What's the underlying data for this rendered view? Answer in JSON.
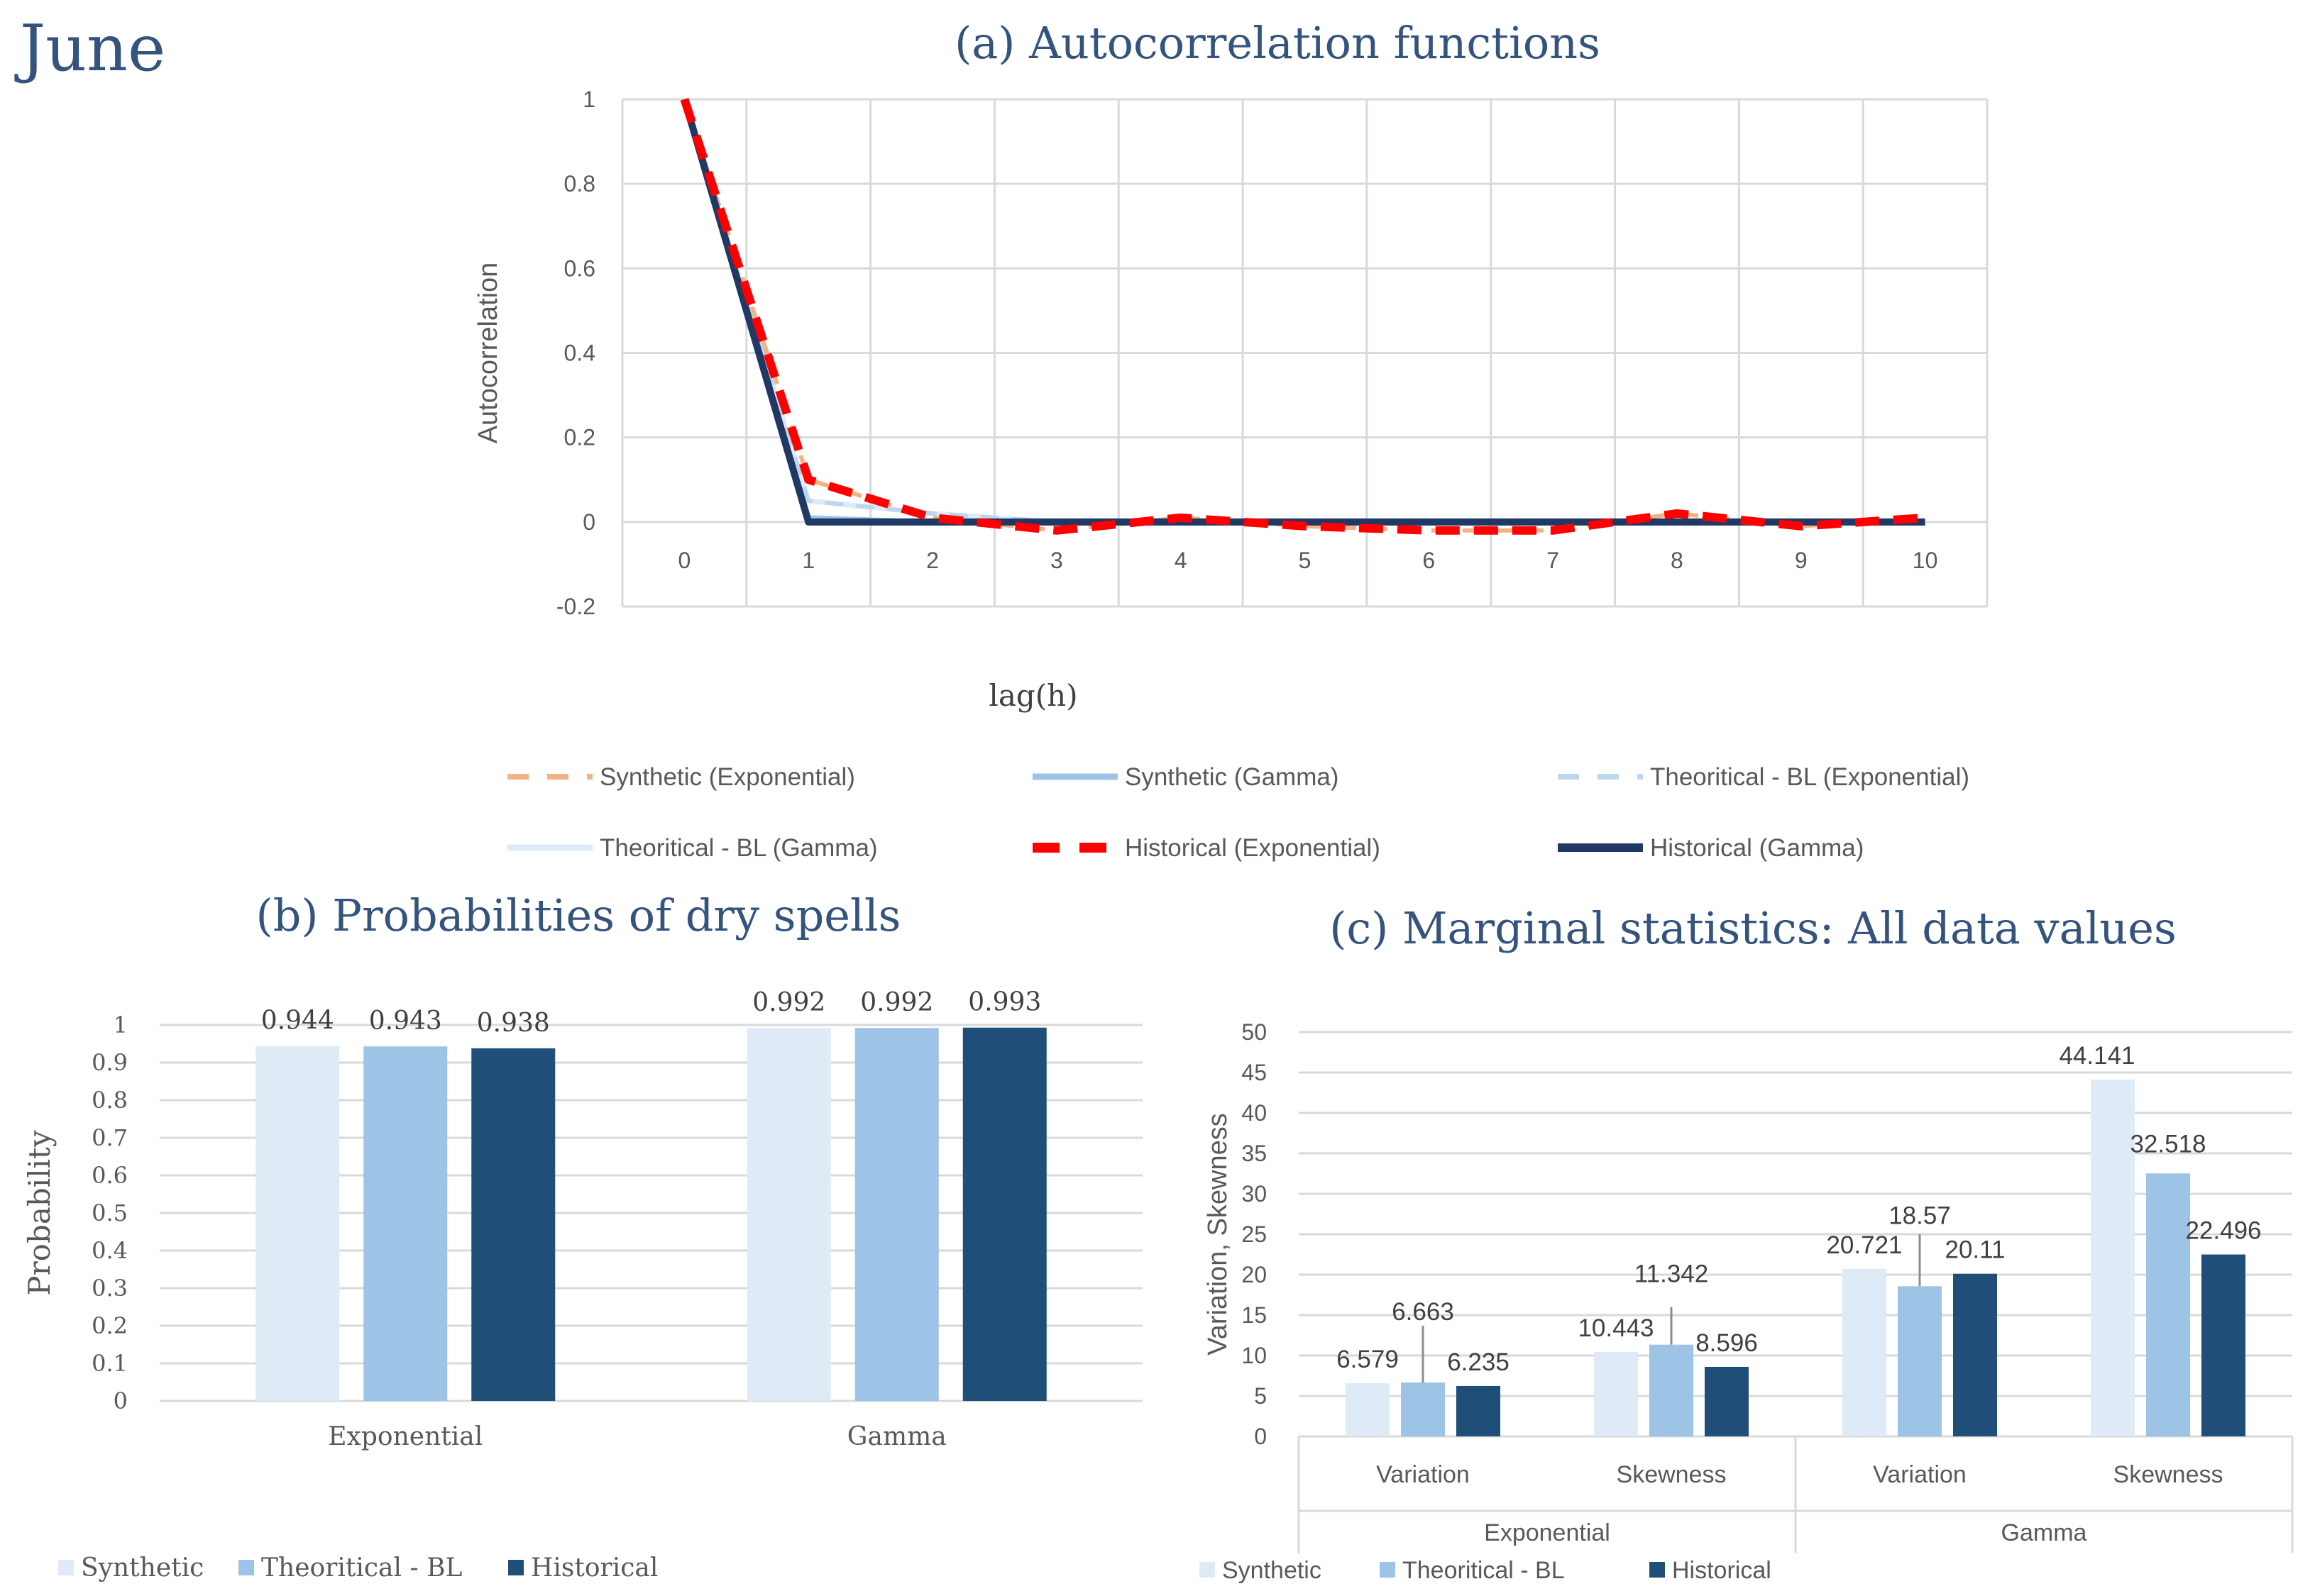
{
  "page_label": "June",
  "colors": {
    "title": "#34537d",
    "grid": "#d9d9d9",
    "axis_text": "#595959",
    "synthetic": "#deebf7",
    "theoretical": "#9dc3e6",
    "historical": "#1f4e79",
    "synthetic_exp_line": "#f4b183",
    "synthetic_gamma_line": "#9dc3e6",
    "theo_exp_line": "#bdd7ee",
    "theo_gamma_line": "#deebf7",
    "hist_exp_line": "#ff0000",
    "hist_gamma_line": "#1f3864"
  },
  "chart_data": [
    {
      "id": "acf",
      "type": "line",
      "title": "(a) Autocorrelation functions",
      "xlabel": "lag(h)",
      "ylabel": "Autocorrelation",
      "x": [
        0,
        1,
        2,
        3,
        4,
        5,
        6,
        7,
        8,
        9,
        10
      ],
      "x_tick_labels": [
        "0",
        "1",
        "2",
        "3",
        "4",
        "5",
        "6",
        "7",
        "8",
        "9",
        "10"
      ],
      "ylim": [
        -0.2,
        1
      ],
      "y_ticks": [
        -0.2,
        0,
        0.2,
        0.4,
        0.6,
        0.8,
        1
      ],
      "y_tick_labels": [
        "-0.2",
        "0",
        "0.2",
        "0.4",
        "0.6",
        "0.8",
        "1"
      ],
      "grid": true,
      "legend_position": "bottom",
      "series": [
        {
          "name": "Synthetic (Exponential)",
          "style": "dashed",
          "color": "#f4b183",
          "values": [
            1,
            0.1,
            0.01,
            -0.02,
            0.01,
            -0.01,
            -0.02,
            -0.02,
            0.02,
            -0.01,
            0.01
          ]
        },
        {
          "name": "Synthetic (Gamma)",
          "style": "solid",
          "color": "#9dc3e6",
          "values": [
            1,
            0.01,
            0.0,
            0.0,
            0.0,
            0.0,
            0.0,
            0.0,
            0.0,
            0.0,
            0.0
          ]
        },
        {
          "name": "Theoritical - BL (Exponential)",
          "style": "dashed",
          "color": "#bdd7ee",
          "values": [
            1,
            0.05,
            0.02,
            0.0,
            0.0,
            0.0,
            0.0,
            0.0,
            0.0,
            0.0,
            0.0
          ]
        },
        {
          "name": "Theoritical - BL (Gamma)",
          "style": "solid",
          "color": "#deebf7",
          "values": [
            1,
            0.05,
            0.02,
            0.0,
            0.0,
            0.0,
            0.0,
            0.0,
            0.0,
            0.0,
            0.0
          ]
        },
        {
          "name": "Historical (Exponential)",
          "style": "dashed",
          "color": "#ff0000",
          "values": [
            1,
            0.1,
            0.01,
            -0.02,
            0.01,
            -0.01,
            -0.02,
            -0.02,
            0.02,
            -0.01,
            0.01
          ]
        },
        {
          "name": "Historical (Gamma)",
          "style": "solid",
          "color": "#1f3864",
          "values": [
            1,
            0.0,
            0.0,
            0.0,
            0.0,
            0.0,
            0.0,
            0.0,
            0.0,
            0.0,
            0.0
          ]
        }
      ]
    },
    {
      "id": "dry",
      "type": "bar",
      "title": "(b) Probabilities of dry spells",
      "xlabel": "",
      "ylabel": "Probability",
      "categories": [
        "Exponential",
        "Gamma"
      ],
      "ylim": [
        0,
        1
      ],
      "y_ticks": [
        0,
        0.1,
        0.2,
        0.3,
        0.4,
        0.5,
        0.6,
        0.7,
        0.8,
        0.9,
        1
      ],
      "y_tick_labels": [
        "0",
        "0.1",
        "0.2",
        "0.3",
        "0.4",
        "0.5",
        "0.6",
        "0.7",
        "0.8",
        "0.9",
        "1"
      ],
      "grid": true,
      "legend_position": "bottom-left",
      "series": [
        {
          "name": "Synthetic",
          "color": "#deebf7",
          "values": [
            0.944,
            0.992
          ],
          "labels": [
            "0.944",
            "0.992"
          ]
        },
        {
          "name": "Theoritical - BL",
          "color": "#9dc3e6",
          "values": [
            0.943,
            0.992
          ],
          "labels": [
            "0.943",
            "0.992"
          ]
        },
        {
          "name": "Historical",
          "color": "#1f4e79",
          "values": [
            0.938,
            0.993
          ],
          "labels": [
            "0.938",
            "0.993"
          ]
        }
      ]
    },
    {
      "id": "marg",
      "type": "bar",
      "title": "(c) Marginal statistics: All data values",
      "xlabel": "",
      "ylabel": "Variation, Skewness",
      "categories": [
        "Variation",
        "Skewness",
        "Variation",
        "Skewness"
      ],
      "groups": [
        {
          "label": "Exponential",
          "span": [
            0,
            1
          ]
        },
        {
          "label": "Gamma",
          "span": [
            2,
            3
          ]
        }
      ],
      "ylim": [
        0,
        50
      ],
      "y_ticks": [
        0,
        5,
        10,
        15,
        20,
        25,
        30,
        35,
        40,
        45,
        50
      ],
      "y_tick_labels": [
        "0",
        "5",
        "10",
        "15",
        "20",
        "25",
        "30",
        "35",
        "40",
        "45",
        "50"
      ],
      "grid": true,
      "legend_position": "bottom-left",
      "series": [
        {
          "name": "Synthetic",
          "color": "#deebf7",
          "values": [
            6.579,
            10.443,
            20.721,
            44.141
          ],
          "labels": [
            "6.579",
            "10.443",
            "20.721",
            "44.141"
          ]
        },
        {
          "name": "Theoritical - BL",
          "color": "#9dc3e6",
          "values": [
            6.663,
            11.342,
            18.57,
            32.518
          ],
          "labels": [
            "6.663",
            "11.342",
            "18.57",
            "32.518"
          ],
          "error_bar_top": [
            13.7,
            16.0,
            25.0,
            null
          ]
        },
        {
          "name": "Historical",
          "color": "#1f4e79",
          "values": [
            6.235,
            8.596,
            20.11,
            22.496
          ],
          "labels": [
            "6.235",
            "8.596",
            "20.11",
            "22.496"
          ]
        }
      ]
    }
  ]
}
